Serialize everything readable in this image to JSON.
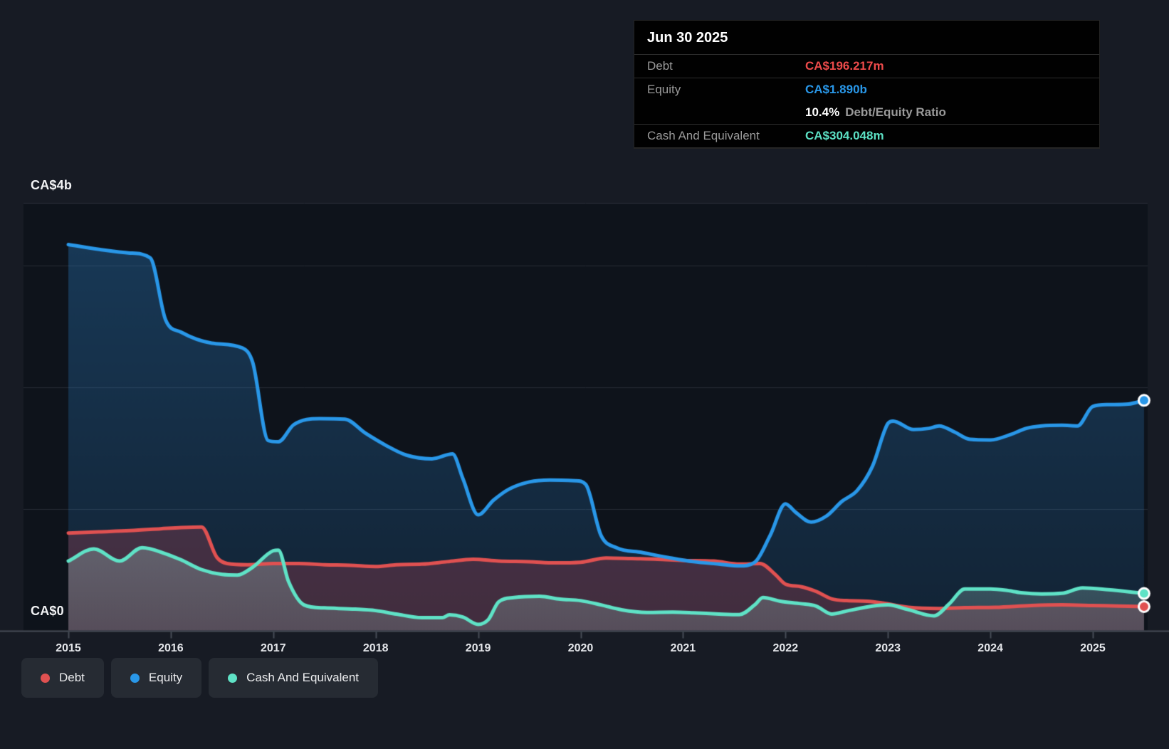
{
  "tooltip": {
    "date": "Jun 30 2025",
    "rows": [
      {
        "label": "Debt",
        "value": "CA$196.217m",
        "color": "#ED4B4B"
      },
      {
        "label": "Equity",
        "value": "CA$1.890b",
        "color": "#2997E8"
      },
      {
        "label": "Cash And Equivalent",
        "value": "CA$304.048m",
        "color": "#5CE0C4"
      }
    ],
    "ratio": {
      "value": "10.4%",
      "label": "Debt/Equity Ratio"
    }
  },
  "axis": {
    "y_top_label": "CA$4b",
    "y_zero_label": "CA$0",
    "x_ticks": [
      "2015",
      "2016",
      "2017",
      "2018",
      "2019",
      "2020",
      "2021",
      "2022",
      "2023",
      "2024",
      "2025"
    ]
  },
  "legend": [
    {
      "label": "Debt",
      "color": "#E05151"
    },
    {
      "label": "Equity",
      "color": "#2997E8"
    },
    {
      "label": "Cash And Equivalent",
      "color": "#5FE2C6"
    }
  ],
  "colors": {
    "page_bg": "#171B24",
    "plot_bg": "#0E131B",
    "gridline": "#272C35",
    "plot_top_border": "#2A2F38",
    "axis_line": "#474D57",
    "debt_line": "#E05151",
    "equity_line": "#2997E8",
    "cash_line": "#5FE2C6",
    "equity_fill": "45,135,210",
    "debt_fill": "222,75,92",
    "cash_fill": "168,212,205"
  },
  "chart_data": {
    "type": "area",
    "title": "Debt to Equity history",
    "unit": "CA$ billions",
    "x_range": [
      2015.0,
      2025.5
    ],
    "y_axis": {
      "min": 0,
      "top_label_value": 4,
      "plot_top_value": 3.5,
      "gridline_values": [
        1,
        2,
        3
      ]
    },
    "legend_position": "bottom-left",
    "series": [
      {
        "name": "Equity",
        "color": "#2997E8",
        "points": [
          [
            2015.0,
            3.17
          ],
          [
            2015.3,
            3.13
          ],
          [
            2015.6,
            3.1
          ],
          [
            2015.8,
            3.06
          ],
          [
            2015.95,
            2.55
          ],
          [
            2016.1,
            2.45
          ],
          [
            2016.4,
            2.36
          ],
          [
            2016.7,
            2.32
          ],
          [
            2016.8,
            2.2
          ],
          [
            2016.95,
            1.56
          ],
          [
            2017.05,
            1.55
          ],
          [
            2017.2,
            1.69
          ],
          [
            2017.45,
            1.74
          ],
          [
            2017.7,
            1.735
          ],
          [
            2017.9,
            1.62
          ],
          [
            2018.1,
            1.52
          ],
          [
            2018.3,
            1.44
          ],
          [
            2018.55,
            1.41
          ],
          [
            2018.75,
            1.45
          ],
          [
            2018.85,
            1.25
          ],
          [
            2019.0,
            0.95
          ],
          [
            2019.15,
            1.07
          ],
          [
            2019.3,
            1.16
          ],
          [
            2019.5,
            1.22
          ],
          [
            2019.7,
            1.235
          ],
          [
            2019.95,
            1.23
          ],
          [
            2020.05,
            1.2
          ],
          [
            2020.2,
            0.78
          ],
          [
            2020.35,
            0.68
          ],
          [
            2020.6,
            0.64
          ],
          [
            2020.85,
            0.6
          ],
          [
            2021.1,
            0.565
          ],
          [
            2021.35,
            0.545
          ],
          [
            2021.55,
            0.53
          ],
          [
            2021.7,
            0.56
          ],
          [
            2021.85,
            0.78
          ],
          [
            2022.0,
            1.04
          ],
          [
            2022.1,
            0.97
          ],
          [
            2022.25,
            0.89
          ],
          [
            2022.4,
            0.94
          ],
          [
            2022.55,
            1.06
          ],
          [
            2022.7,
            1.15
          ],
          [
            2022.85,
            1.35
          ],
          [
            2023.0,
            1.7
          ],
          [
            2023.05,
            1.72
          ],
          [
            2023.25,
            1.65
          ],
          [
            2023.4,
            1.66
          ],
          [
            2023.5,
            1.68
          ],
          [
            2023.65,
            1.63
          ],
          [
            2023.8,
            1.57
          ],
          [
            2024.0,
            1.565
          ],
          [
            2024.2,
            1.61
          ],
          [
            2024.35,
            1.66
          ],
          [
            2024.5,
            1.68
          ],
          [
            2024.7,
            1.685
          ],
          [
            2024.85,
            1.68
          ],
          [
            2025.0,
            1.84
          ],
          [
            2025.15,
            1.855
          ],
          [
            2025.35,
            1.86
          ],
          [
            2025.5,
            1.89
          ]
        ]
      },
      {
        "name": "Debt",
        "color": "#E05151",
        "points": [
          [
            2015.0,
            0.8
          ],
          [
            2015.3,
            0.81
          ],
          [
            2015.6,
            0.82
          ],
          [
            2015.9,
            0.835
          ],
          [
            2016.1,
            0.845
          ],
          [
            2016.3,
            0.85
          ],
          [
            2016.45,
            0.6
          ],
          [
            2016.55,
            0.55
          ],
          [
            2016.75,
            0.54
          ],
          [
            2017.0,
            0.55
          ],
          [
            2017.25,
            0.55
          ],
          [
            2017.5,
            0.54
          ],
          [
            2017.75,
            0.535
          ],
          [
            2018.0,
            0.525
          ],
          [
            2018.2,
            0.54
          ],
          [
            2018.45,
            0.545
          ],
          [
            2018.7,
            0.565
          ],
          [
            2018.95,
            0.585
          ],
          [
            2019.2,
            0.57
          ],
          [
            2019.5,
            0.565
          ],
          [
            2019.75,
            0.555
          ],
          [
            2020.0,
            0.56
          ],
          [
            2020.25,
            0.595
          ],
          [
            2020.5,
            0.59
          ],
          [
            2020.75,
            0.585
          ],
          [
            2021.0,
            0.575
          ],
          [
            2021.3,
            0.57
          ],
          [
            2021.55,
            0.545
          ],
          [
            2021.75,
            0.55
          ],
          [
            2021.9,
            0.46
          ],
          [
            2022.0,
            0.38
          ],
          [
            2022.15,
            0.36
          ],
          [
            2022.3,
            0.32
          ],
          [
            2022.45,
            0.26
          ],
          [
            2022.6,
            0.245
          ],
          [
            2022.8,
            0.24
          ],
          [
            2022.95,
            0.225
          ],
          [
            2023.2,
            0.19
          ],
          [
            2023.5,
            0.18
          ],
          [
            2023.75,
            0.187
          ],
          [
            2024.05,
            0.19
          ],
          [
            2024.4,
            0.205
          ],
          [
            2024.7,
            0.21
          ],
          [
            2025.0,
            0.205
          ],
          [
            2025.25,
            0.2
          ],
          [
            2025.5,
            0.196
          ]
        ]
      },
      {
        "name": "Cash And Equivalent",
        "color": "#5FE2C6",
        "points": [
          [
            2015.0,
            0.57
          ],
          [
            2015.25,
            0.67
          ],
          [
            2015.5,
            0.57
          ],
          [
            2015.72,
            0.68
          ],
          [
            2015.95,
            0.63
          ],
          [
            2016.1,
            0.58
          ],
          [
            2016.3,
            0.5
          ],
          [
            2016.5,
            0.46
          ],
          [
            2016.65,
            0.455
          ],
          [
            2016.8,
            0.52
          ],
          [
            2017.0,
            0.655
          ],
          [
            2017.05,
            0.66
          ],
          [
            2017.15,
            0.4
          ],
          [
            2017.3,
            0.21
          ],
          [
            2017.5,
            0.185
          ],
          [
            2017.8,
            0.175
          ],
          [
            2018.0,
            0.163
          ],
          [
            2018.2,
            0.135
          ],
          [
            2018.45,
            0.105
          ],
          [
            2018.65,
            0.105
          ],
          [
            2018.72,
            0.128
          ],
          [
            2018.85,
            0.11
          ],
          [
            2019.0,
            0.05
          ],
          [
            2019.1,
            0.09
          ],
          [
            2019.2,
            0.235
          ],
          [
            2019.35,
            0.27
          ],
          [
            2019.6,
            0.28
          ],
          [
            2019.8,
            0.257
          ],
          [
            2020.0,
            0.245
          ],
          [
            2020.2,
            0.21
          ],
          [
            2020.4,
            0.17
          ],
          [
            2020.65,
            0.148
          ],
          [
            2020.9,
            0.15
          ],
          [
            2021.1,
            0.145
          ],
          [
            2021.35,
            0.135
          ],
          [
            2021.55,
            0.13
          ],
          [
            2021.7,
            0.21
          ],
          [
            2021.78,
            0.27
          ],
          [
            2021.95,
            0.24
          ],
          [
            2022.15,
            0.22
          ],
          [
            2022.3,
            0.2
          ],
          [
            2022.45,
            0.135
          ],
          [
            2022.6,
            0.16
          ],
          [
            2022.85,
            0.2
          ],
          [
            2023.0,
            0.21
          ],
          [
            2023.2,
            0.17
          ],
          [
            2023.45,
            0.12
          ],
          [
            2023.6,
            0.22
          ],
          [
            2023.75,
            0.34
          ],
          [
            2024.0,
            0.34
          ],
          [
            2024.15,
            0.33
          ],
          [
            2024.3,
            0.31
          ],
          [
            2024.5,
            0.3
          ],
          [
            2024.7,
            0.305
          ],
          [
            2024.9,
            0.35
          ],
          [
            2025.15,
            0.335
          ],
          [
            2025.5,
            0.304
          ]
        ]
      }
    ],
    "end_markers": true
  }
}
